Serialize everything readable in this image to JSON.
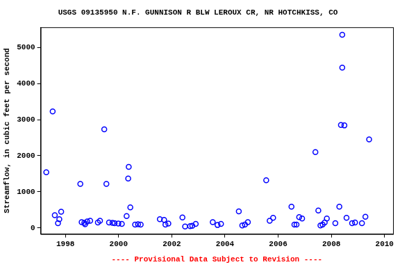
{
  "chart_data": {
    "type": "scatter",
    "title": "USGS 09135950 N.F. GUNNISON R BLW LEROUX CR, NR HOTCHKISS, CO",
    "y_label": "Streamflow, in cubic feet per second",
    "annotation": "---- Provisional Data Subject to Revision ----",
    "x": [
      1997.28,
      1997.52,
      1997.6,
      1997.72,
      1997.77,
      1997.84,
      1998.56,
      1998.61,
      1998.71,
      1998.74,
      1998.82,
      1998.93,
      1999.22,
      1999.3,
      1999.46,
      1999.54,
      1999.64,
      1999.77,
      1999.85,
      1999.99,
      2000.12,
      2000.3,
      2000.36,
      2000.38,
      2000.44,
      2000.62,
      2000.73,
      2000.83,
      2001.55,
      2001.71,
      2001.76,
      2001.87,
      2002.4,
      2002.5,
      2002.69,
      2002.77,
      2002.9,
      2003.54,
      2003.72,
      2003.85,
      2004.52,
      2004.65,
      2004.75,
      2004.86,
      2005.55,
      2005.68,
      2005.81,
      2006.5,
      2006.61,
      2006.69,
      2006.79,
      2006.9,
      2007.4,
      2007.51,
      2007.59,
      2007.67,
      2007.75,
      2007.83,
      2008.15,
      2008.3,
      2008.36,
      2008.41,
      2008.41,
      2008.49,
      2008.57,
      2008.78,
      2008.89,
      2009.15,
      2009.28,
      2009.42
    ],
    "values": [
      1540,
      3230,
      350,
      130,
      240,
      450,
      1220,
      160,
      140,
      100,
      180,
      200,
      150,
      200,
      2730,
      1220,
      150,
      140,
      130,
      120,
      110,
      330,
      1370,
      1690,
      570,
      90,
      100,
      90,
      240,
      220,
      90,
      120,
      290,
      40,
      50,
      60,
      110,
      160,
      80,
      110,
      460,
      70,
      90,
      160,
      1320,
      200,
      280,
      590,
      90,
      90,
      300,
      260,
      2100,
      480,
      70,
      90,
      150,
      260,
      130,
      590,
      2850,
      5350,
      4440,
      2840,
      280,
      130,
      150,
      130,
      310,
      2450
    ],
    "color": "#0000ff",
    "marker": "circle",
    "xlim": [
      1997.07,
      2010.32
    ],
    "xticks": [
      1998,
      2000,
      2002,
      2004,
      2006,
      2008,
      2010
    ],
    "ylim": [
      -170,
      5560
    ],
    "yticks": [
      0,
      1000,
      2000,
      3000,
      4000,
      5000
    ],
    "grid": false
  }
}
